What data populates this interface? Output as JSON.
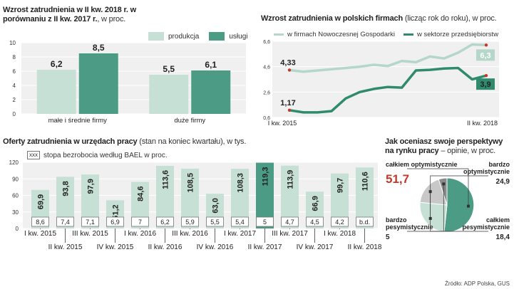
{
  "chart_data": [
    {
      "type": "bar",
      "title_bold": "Wzrost zatrudnienia w  II kw. 2018 r. w porównaniu z II kw. 2017 r.",
      "title_light": ", w proc.",
      "categories": [
        "małe i średnie firmy",
        "duże firmy"
      ],
      "series": [
        {
          "name": "produkcja",
          "values": [
            6.2,
            5.5
          ],
          "value_labels": [
            "6,2",
            "5,5"
          ]
        },
        {
          "name": "usługi",
          "values": [
            8.5,
            6.1
          ],
          "value_labels": [
            "8,5",
            "6,1"
          ]
        }
      ],
      "ylim": [
        0,
        10
      ],
      "yticks": [
        0,
        2,
        4,
        6,
        8,
        10
      ],
      "grid": true,
      "legend": "top-right",
      "colors": [
        "#c6e0d6",
        "#4c9c85"
      ]
    },
    {
      "type": "line",
      "title_bold": "Wzrost zatrudnienia  w polskich firmach",
      "title_light": " (licząc rok do roku), w proc.",
      "x_labels": [
        "I kw. 2015",
        "II kw. 2018"
      ],
      "ylim": [
        0.6,
        6.6
      ],
      "yticks": [
        0.6,
        2.6,
        4.6,
        6.6
      ],
      "ytick_labels": [
        "0,6",
        "2,6",
        "4,6",
        "6,6"
      ],
      "series": [
        {
          "name": "w firmach Nowoczesnej Gospodarki",
          "values": [
            4.33,
            4.2,
            4.3,
            4.4,
            4.5,
            4.6,
            4.75,
            4.65,
            5.05,
            4.95,
            5.4,
            5.25,
            5.7,
            6.35,
            6.3
          ],
          "start_label": "4,33",
          "end_label": "6,3",
          "color": "#b5d7c9"
        },
        {
          "name": "w sektorze przedsiębiorstw",
          "values": [
            1.17,
            1.0,
            1.0,
            1.1,
            2.1,
            2.6,
            2.85,
            3.0,
            2.95,
            4.3,
            4.35,
            4.45,
            4.5,
            3.6,
            3.9
          ],
          "start_label": "1,17",
          "end_label": "3,9",
          "color": "#2f8a6e"
        }
      ],
      "legend": "top",
      "grid": true
    },
    {
      "type": "bar",
      "title_bold": "Oferty zatrudnienia w urzędach pracy",
      "title_light": " (stan na koniec kwartału), w tys.",
      "note_box": "xxx",
      "note_text": "stopa bezrobocia według BAEL w proc.",
      "categories": [
        "I kw. 2015",
        "II kw. 2015",
        "III kw. 2015",
        "IV kw. 2015",
        "I kw. 2016",
        "II kw. 2016",
        "III kw. 2016",
        "IV kw. 2016",
        "I kw. 2017",
        "II kw. 2017",
        "III kw. 2017",
        "IV kw. 2017",
        "I kw. 2018",
        "II kw. 2018"
      ],
      "values": [
        69.9,
        93.8,
        97.9,
        51.2,
        84.6,
        113.6,
        108.5,
        63.0,
        108.3,
        119.3,
        113.9,
        66.9,
        99.7,
        110.6
      ],
      "value_labels": [
        "69,9",
        "93,8",
        "97,9",
        "51,2",
        "84,6",
        "113,6",
        "108,5",
        "63,0",
        "108,3",
        "119,3",
        "113,9",
        "66,9",
        "99,7",
        "110,6"
      ],
      "unemployment_labels": [
        "8,6",
        "7,4",
        "7,1",
        "6,9",
        "7",
        "6,2",
        "5,9",
        "5,5",
        "5,4",
        "5",
        "4,7",
        "4,5",
        "4,2",
        "b.d."
      ],
      "highlight_index": 9,
      "ylim": [
        0,
        120
      ],
      "yticks": [
        0,
        30,
        60,
        90,
        120
      ],
      "grid": true,
      "colors": {
        "bar": "#c6e0d6",
        "highlight": "#4c9c85"
      }
    },
    {
      "type": "pie",
      "title_bold": "Jak oceniasz swoje perspektywy na rynku pracy",
      "title_light": " – opinie, w proc.",
      "slices": [
        {
          "name": "całkiem optymistycznie",
          "value": 51.7,
          "label": "51,7",
          "color": "#4c9c85"
        },
        {
          "name": "bardzo optymistycznie",
          "value": 24.9,
          "label": "24,9",
          "color": "#c6e0d6"
        },
        {
          "name": "całkiem pesymistycznie",
          "value": 18.4,
          "label": "18,4",
          "color": "#c8c8c8"
        },
        {
          "name": "bardzo pesymistycznie",
          "value": 5,
          "label": "5",
          "color": "#8a8a8a"
        }
      ],
      "source": "Źródło: ADP Polska, GUS"
    }
  ]
}
